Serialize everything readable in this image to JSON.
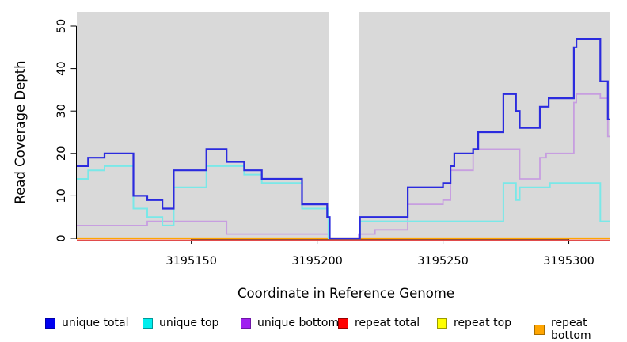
{
  "legend": [
    {
      "label": "unique total",
      "color": "#0000F0",
      "border": "#0000A8"
    },
    {
      "label": "unique top",
      "color": "#00EEEE",
      "border": "#009999"
    },
    {
      "label": "unique bottom",
      "color": "#A020F0",
      "border": "#6E16A6"
    },
    {
      "label": "repeat total",
      "color": "#FF0000",
      "border": "#990000"
    },
    {
      "label": "repeat top",
      "color": "#FFFF00",
      "border": "#9B9B00"
    },
    {
      "label": "repeat bottom",
      "color": "#FFA500",
      "border": "#A86E00"
    }
  ],
  "chart_data": {
    "type": "line",
    "subtype": "step",
    "title": "",
    "xlabel": "Coordinate in Reference Genome",
    "ylabel": "Read Coverage Depth",
    "background": "#D9D9D9",
    "grid": false,
    "legend_position": "bottom",
    "xlim": [
      3195104.5,
      3195316.5
    ],
    "ylim": [
      0,
      53.4
    ],
    "x_ticks": [
      3195150,
      3195200,
      3195250,
      3195300
    ],
    "y_ticks": [
      0,
      10,
      20,
      30,
      40,
      50
    ],
    "no_data_region": [
      3195204.7,
      3195216.6
    ],
    "series": [
      {
        "name": "unique total",
        "line_color": "#2B2BDE",
        "segments": [
          [
            3195104.5,
            3195109,
            17
          ],
          [
            3195109,
            3195115.5,
            19
          ],
          [
            3195115.5,
            3195127,
            20
          ],
          [
            3195127,
            3195132.5,
            10
          ],
          [
            3195132.5,
            3195138.5,
            9
          ],
          [
            3195138.5,
            3195143,
            7
          ],
          [
            3195143,
            3195156,
            16
          ],
          [
            3195156,
            3195164,
            21
          ],
          [
            3195164,
            3195171,
            18
          ],
          [
            3195171,
            3195178,
            16
          ],
          [
            3195178,
            3195194,
            14
          ],
          [
            3195194,
            3195204,
            8
          ],
          [
            3195204,
            3195205,
            5
          ],
          [
            3195205,
            3195217,
            0
          ],
          [
            3195217,
            3195236,
            5
          ],
          [
            3195236,
            3195250,
            12
          ],
          [
            3195250,
            3195253,
            13
          ],
          [
            3195253,
            3195254.5,
            17
          ],
          [
            3195254.5,
            3195262,
            20
          ],
          [
            3195262,
            3195264,
            21
          ],
          [
            3195264,
            3195274,
            25
          ],
          [
            3195274,
            3195279,
            34
          ],
          [
            3195279,
            3195280.5,
            30
          ],
          [
            3195280.5,
            3195288.5,
            26
          ],
          [
            3195288.5,
            3195292,
            31
          ],
          [
            3195292,
            3195302,
            33
          ],
          [
            3195302,
            3195303,
            45
          ],
          [
            3195303,
            3195312.5,
            47
          ],
          [
            3195312.5,
            3195315.5,
            37
          ],
          [
            3195315.5,
            3195316.5,
            28
          ]
        ]
      },
      {
        "name": "unique top",
        "line_color": "#79E8E8",
        "segments": [
          [
            3195104.5,
            3195109,
            14
          ],
          [
            3195109,
            3195115.5,
            16
          ],
          [
            3195115.5,
            3195127,
            17
          ],
          [
            3195127,
            3195132.5,
            7
          ],
          [
            3195132.5,
            3195138.5,
            5
          ],
          [
            3195138.5,
            3195143,
            3
          ],
          [
            3195143,
            3195156,
            12
          ],
          [
            3195156,
            3195171,
            17
          ],
          [
            3195171,
            3195178,
            15
          ],
          [
            3195178,
            3195194,
            13
          ],
          [
            3195194,
            3195204.5,
            7
          ],
          [
            3195204.5,
            3195217,
            0
          ],
          [
            3195217,
            3195274,
            4
          ],
          [
            3195274,
            3195279,
            13
          ],
          [
            3195279,
            3195280.5,
            9
          ],
          [
            3195280.5,
            3195292.5,
            12
          ],
          [
            3195292.5,
            3195312.5,
            13
          ],
          [
            3195312.5,
            3195316.5,
            4
          ]
        ]
      },
      {
        "name": "unique bottom",
        "line_color": "#C79EE0",
        "segments": [
          [
            3195104.5,
            3195132.5,
            3
          ],
          [
            3195132.5,
            3195164,
            4
          ],
          [
            3195164,
            3195204.5,
            1
          ],
          [
            3195204.5,
            3195216.5,
            0
          ],
          [
            3195216.5,
            3195223,
            1
          ],
          [
            3195223,
            3195236,
            2
          ],
          [
            3195236,
            3195250,
            8
          ],
          [
            3195250,
            3195253,
            9
          ],
          [
            3195253,
            3195262,
            16
          ],
          [
            3195262,
            3195280.5,
            21
          ],
          [
            3195280.5,
            3195288.5,
            14
          ],
          [
            3195288.5,
            3195291,
            19
          ],
          [
            3195291,
            3195302,
            20
          ],
          [
            3195302,
            3195303,
            32
          ],
          [
            3195303,
            3195312.5,
            34
          ],
          [
            3195312.5,
            3195315.5,
            33
          ],
          [
            3195315.5,
            3195316.5,
            24
          ]
        ]
      },
      {
        "name": "repeat total",
        "line_color": "#E14B4B",
        "segments": [
          [
            3195104.5,
            3195316.5,
            0
          ]
        ]
      },
      {
        "name": "repeat top",
        "line_color": "#FFFF00",
        "segments": [
          [
            3195104.5,
            3195316.5,
            0
          ]
        ]
      },
      {
        "name": "repeat bottom",
        "line_color": "#FFA500",
        "segments": [
          [
            3195104.5,
            3195316.5,
            0
          ]
        ]
      }
    ]
  }
}
